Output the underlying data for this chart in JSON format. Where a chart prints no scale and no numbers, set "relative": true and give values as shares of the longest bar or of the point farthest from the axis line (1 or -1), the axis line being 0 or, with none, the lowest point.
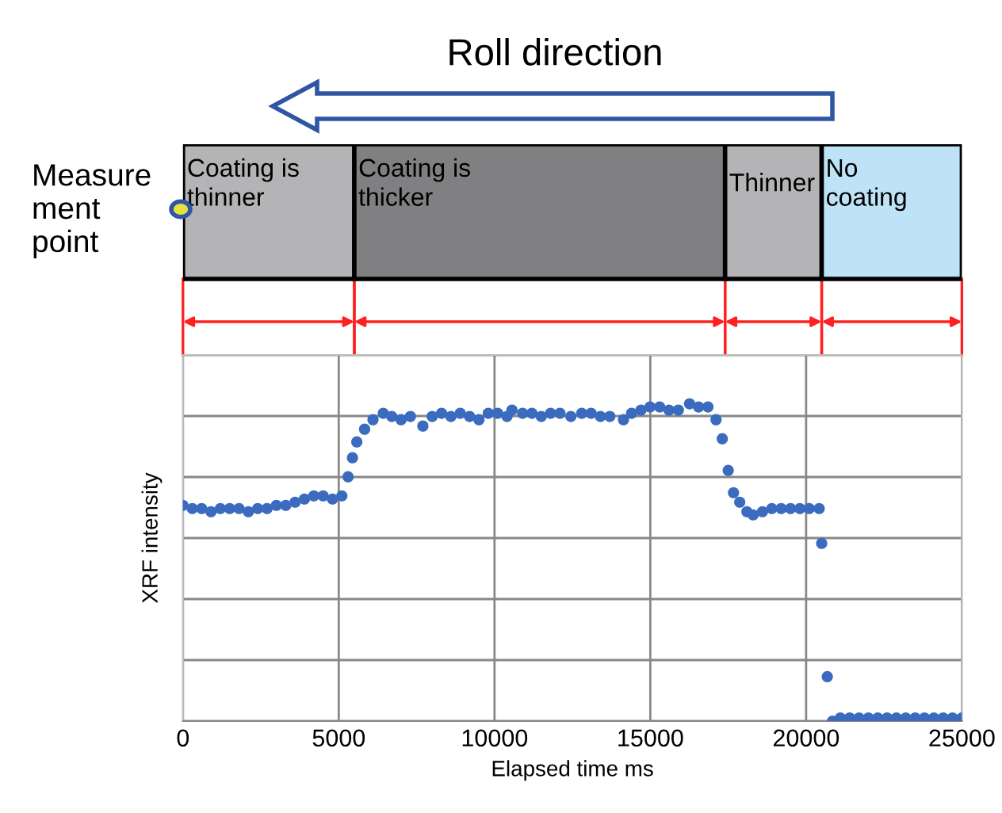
{
  "chart_data": [
    {
      "type": "bar",
      "orientation": "horizontal",
      "stacked": true,
      "categories": [
        null
      ],
      "xlim": [
        0,
        25000
      ],
      "tick_labels": false,
      "annotations": [
        "Roll direction",
        "Measure\nment\npoint"
      ],
      "series": [
        {
          "name": "Coating is\nthinner",
          "color": "#b4b4b6",
          "values": [
            5500
          ]
        },
        {
          "name": "Coating is\nthicker",
          "color": "#808083",
          "values": [
            11900
          ]
        },
        {
          "name": "Thinner",
          "color": "#b4b4b6",
          "values": [
            3100
          ]
        },
        {
          "name": "No\ncoating",
          "color": "#bee3f6",
          "values": [
            4500
          ]
        }
      ]
    },
    {
      "type": "scatter",
      "relative": true,
      "xlabel": "Elapsed time ms",
      "ylabel": "XRF intensity",
      "xlim": [
        0,
        25000
      ],
      "xticks": [
        0,
        5000,
        10000,
        15000,
        20000,
        25000
      ],
      "grid": true,
      "marker": "circle",
      "series": [
        {
          "color": "#3a6bbf",
          "x": [
            0,
            300,
            600,
            900,
            1200,
            1500,
            1800,
            2100,
            2400,
            2700,
            3000,
            3300,
            3600,
            3900,
            4200,
            4500,
            4800,
            5100,
            5300,
            5440,
            5580,
            5830,
            6100,
            6430,
            6700,
            7000,
            7300,
            7700,
            8000,
            8300,
            8600,
            8900,
            9200,
            9500,
            9800,
            10100,
            10400,
            10560,
            10900,
            11200,
            11500,
            11800,
            12100,
            12450,
            12800,
            13100,
            13400,
            13700,
            14140,
            14400,
            14700,
            14990,
            15300,
            15600,
            15900,
            16260,
            16550,
            16850,
            17110,
            17310,
            17500,
            17670,
            17870,
            18100,
            18300,
            18600,
            18900,
            19200,
            19500,
            19800,
            20100,
            20420,
            20500,
            20680,
            20850,
            21100,
            21400,
            21700,
            22000,
            22300,
            22600,
            22900,
            23200,
            23500,
            23800,
            24100,
            24400,
            24700,
            25000
          ],
          "values": [
            0.68,
            0.67,
            0.67,
            0.66,
            0.67,
            0.67,
            0.67,
            0.66,
            0.67,
            0.67,
            0.68,
            0.68,
            0.69,
            0.7,
            0.71,
            0.71,
            0.7,
            0.71,
            0.77,
            0.83,
            0.88,
            0.92,
            0.95,
            0.97,
            0.96,
            0.95,
            0.96,
            0.93,
            0.96,
            0.97,
            0.96,
            0.97,
            0.96,
            0.95,
            0.97,
            0.97,
            0.96,
            0.98,
            0.97,
            0.97,
            0.96,
            0.97,
            0.97,
            0.96,
            0.97,
            0.97,
            0.96,
            0.96,
            0.95,
            0.97,
            0.98,
            0.99,
            0.99,
            0.98,
            0.98,
            1.0,
            0.99,
            0.99,
            0.95,
            0.89,
            0.79,
            0.72,
            0.69,
            0.66,
            0.65,
            0.66,
            0.67,
            0.67,
            0.67,
            0.67,
            0.67,
            0.67,
            0.56,
            0.14,
            0.0,
            0.01,
            0.01,
            0.01,
            0.01,
            0.01,
            0.01,
            0.01,
            0.01,
            0.01,
            0.01,
            0.01,
            0.01,
            0.01,
            0.01
          ]
        }
      ]
    }
  ]
}
